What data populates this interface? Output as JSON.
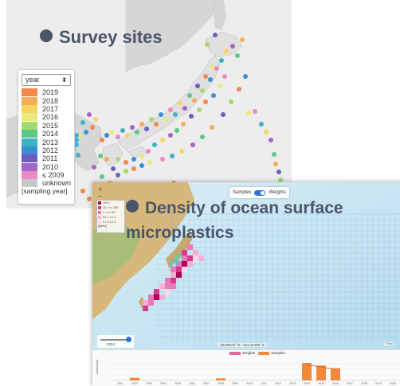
{
  "top_title": "Survey sites",
  "legend": {
    "select_value": "year",
    "select_arrow": "⬍",
    "items": [
      {
        "label": "2019",
        "color": "#f08a4b"
      },
      {
        "label": "2018",
        "color": "#f6ae58"
      },
      {
        "label": "2017",
        "color": "#fbd362"
      },
      {
        "label": "2016",
        "color": "#e8ea7a"
      },
      {
        "label": "2015",
        "color": "#a4d96c"
      },
      {
        "label": "2014",
        "color": "#5cc888"
      },
      {
        "label": "2013",
        "color": "#3fb2c3"
      },
      {
        "label": "2012",
        "color": "#3a8fd0"
      },
      {
        "label": "2011",
        "color": "#6a5fbf"
      },
      {
        "label": "2010",
        "color": "#a266c4"
      },
      {
        "label": "≤ 2009",
        "color": "#e98bc3"
      },
      {
        "label": "unknown",
        "color": "#c8c8c8"
      }
    ],
    "footer": "[sampling year]"
  },
  "bottom_title_line1": "Density of ocean surface",
  "bottom_title_line2": "microplastics",
  "toggle": {
    "left": "Samples",
    "right": "Weights"
  },
  "zoom": {
    "plus": "+",
    "minus": "−"
  },
  "density_legend": {
    "items": [
      {
        "label": "100 <",
        "color": "#b0005a"
      },
      {
        "label": "10 < x ≤ 100",
        "color": "#d63c8e"
      },
      {
        "label": "1 < x ≤ 10",
        "color": "#ea79b6"
      },
      {
        "label": "0.1 < x ≤ 1",
        "color": "#f4b0d3"
      },
      {
        "label": "0 < x ≤ 0.1",
        "color": "#fbd9ea"
      }
    ],
    "unit": "[g/km²]"
  },
  "slider_label": "2014",
  "coord": "33.80878° N / 163.41490° E",
  "attrib": "© Esri",
  "bar_legend": {
    "weights": "Weights",
    "samples": "Samples",
    "weights_color": "#e8659e",
    "samples_color": "#f08a3a"
  },
  "chart_data": {
    "type": "bar",
    "ylabel": "[cases/km²]",
    "categories": [
      "2001",
      "2002",
      "2003",
      "2004",
      "2005",
      "2006",
      "2007",
      "2008",
      "2009",
      "2010",
      "2011",
      "2012",
      "2013",
      "2014",
      "2015",
      "2016",
      "2017",
      "2018",
      "2019",
      "2020"
    ],
    "series": [
      {
        "name": "Samples",
        "values": [
          0,
          0.15,
          0,
          0,
          0,
          0,
          0,
          0.12,
          0,
          0,
          0,
          0,
          0,
          1.0,
          0.85,
          0.7,
          0,
          0,
          0,
          0
        ]
      }
    ]
  }
}
